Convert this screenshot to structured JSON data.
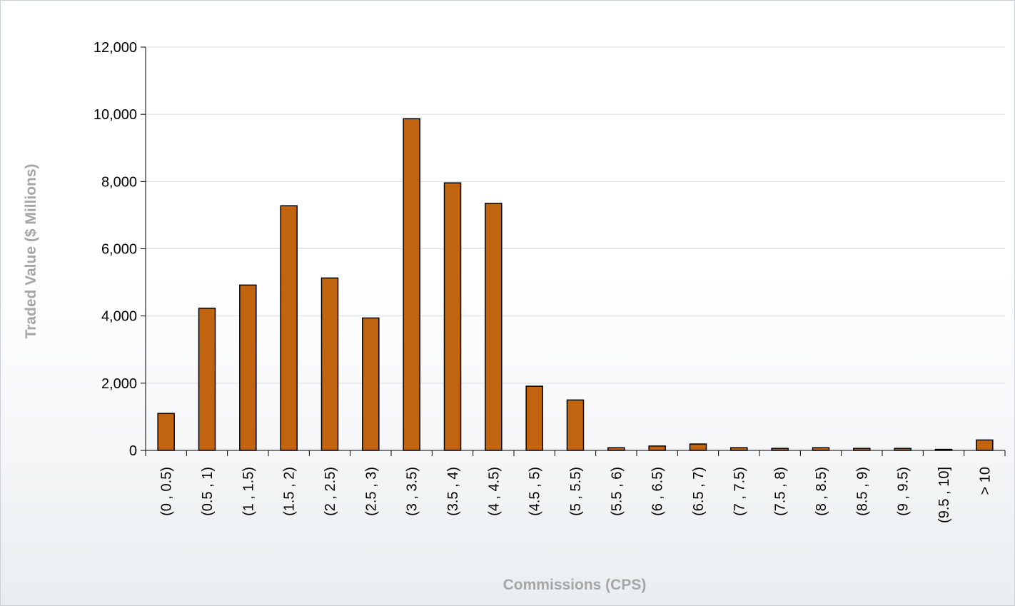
{
  "chart_data": {
    "type": "bar",
    "title": "",
    "xlabel": "Commissions (CPS)",
    "ylabel": "Traded Value ($ Millions)",
    "ylim": [
      0,
      12000
    ],
    "yticks": [
      0,
      2000,
      4000,
      6000,
      8000,
      10000,
      12000
    ],
    "ytick_labels": [
      "0",
      "2,000",
      "4,000",
      "6,000",
      "8,000",
      "10,000",
      "12,000"
    ],
    "grid": "horizontal",
    "legend": "none",
    "categories": [
      "(0 , 0.5)",
      "(0.5 , 1)",
      "(1 , 1.5)",
      "(1.5 , 2)",
      "(2 , 2.5)",
      "(2.5 , 3)",
      "(3 , 3.5)",
      "(3.5 , 4)",
      "(4 , 4.5)",
      "(4.5 , 5)",
      "(5 , 5.5)",
      "(5.5 , 6)",
      "(6 , 6.5)",
      "(6.5 , 7)",
      "(7 , 7.5)",
      "(7.5 , 8)",
      "(8 , 8.5)",
      "(8.5 , 9)",
      "(9 , 9.5)",
      "(9.5 , 10]",
      "> 10"
    ],
    "values": [
      1100,
      4230,
      4920,
      7280,
      5130,
      3940,
      9870,
      7960,
      7350,
      1910,
      1500,
      80,
      130,
      190,
      80,
      60,
      80,
      60,
      60,
      30,
      310
    ],
    "colors": {
      "bar_fill": "#c0640f",
      "bar_stroke": "#000000",
      "grid": "#d9dde0",
      "axis": "#000000",
      "axis_title": "#a6a6a6"
    }
  }
}
